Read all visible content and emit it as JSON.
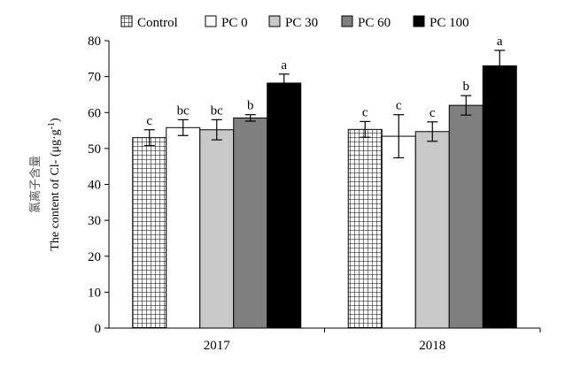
{
  "chart_data": {
    "type": "bar",
    "categories": [
      "2017",
      "2018"
    ],
    "series": [
      {
        "name": "Control",
        "values": [
          53,
          55.3
        ],
        "errors": [
          2.2,
          2.2
        ],
        "letters": [
          "c",
          "c"
        ],
        "color": "#ffffff",
        "pattern": "grid"
      },
      {
        "name": "PC 0",
        "values": [
          55.8,
          53.4
        ],
        "errors": [
          2.2,
          6.0
        ],
        "letters": [
          "bc",
          "c"
        ],
        "color": "#ffffff",
        "pattern": "none"
      },
      {
        "name": "PC 30",
        "values": [
          55.2,
          54.7
        ],
        "errors": [
          2.8,
          2.7
        ],
        "letters": [
          "bc",
          "c"
        ],
        "color": "#c8c8c8",
        "pattern": "none"
      },
      {
        "name": "PC 60",
        "values": [
          58.5,
          62.0
        ],
        "errors": [
          0.9,
          2.7
        ],
        "letters": [
          "b",
          "b"
        ],
        "color": "#7f7f7f",
        "pattern": "none"
      },
      {
        "name": "PC 100",
        "values": [
          68.2,
          73.0
        ],
        "errors": [
          2.5,
          4.3
        ],
        "letters": [
          "a",
          "a"
        ],
        "color": "#000000",
        "pattern": "none"
      }
    ],
    "ylim": [
      0,
      80
    ],
    "yticks": [
      "0",
      "10",
      "20",
      "30",
      "40",
      "50",
      "60",
      "70",
      "80"
    ],
    "ylabel_cn": "氯离子含量",
    "ylabel_en": "The content of Cl- (μg·g",
    "ylabel_sup": "-1",
    "ylabel_close": ")",
    "legend_position": "top",
    "grid": false
  }
}
